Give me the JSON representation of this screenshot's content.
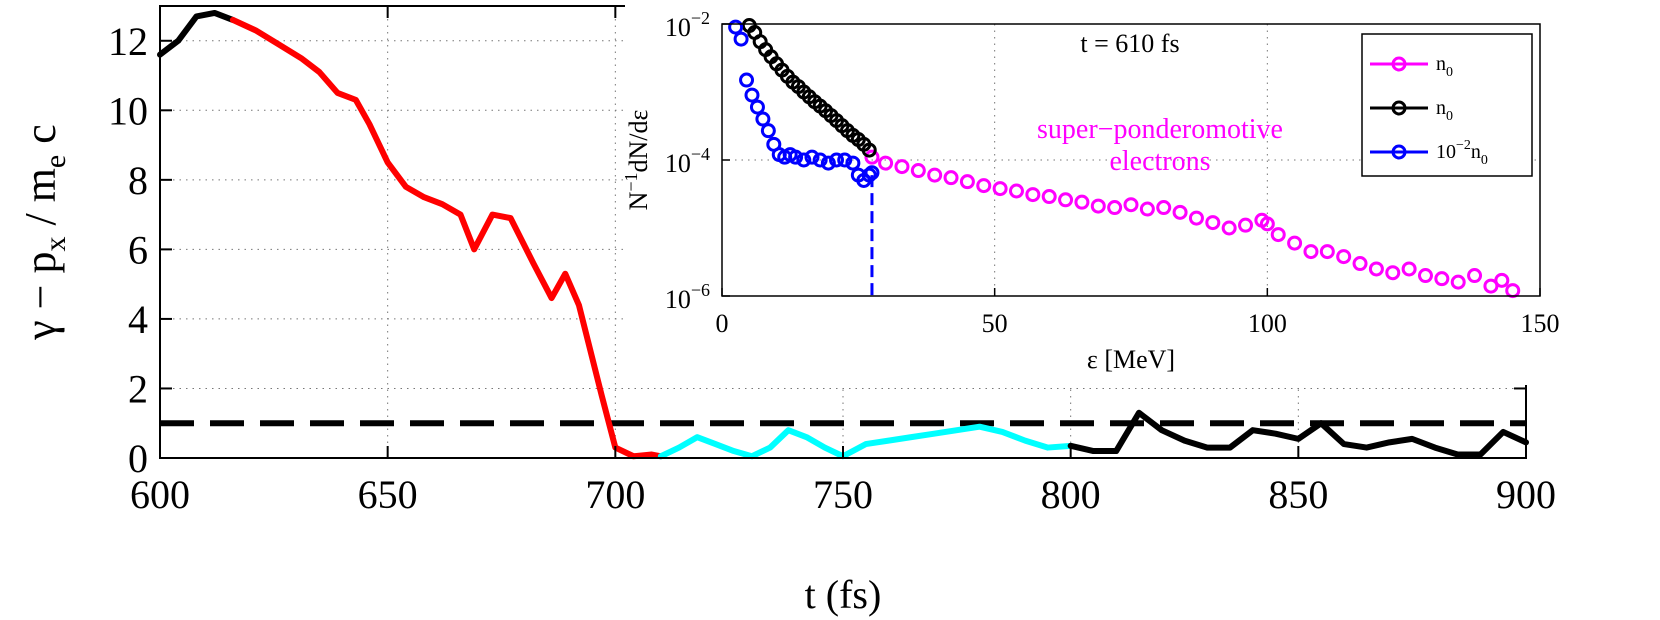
{
  "colors": {
    "black": "#000000",
    "red": "#ff0000",
    "cyan": "#00ffff",
    "magenta": "#ff00ff",
    "blue": "#0000ff",
    "grid": "#777777"
  },
  "chart_data": [
    {
      "id": "main",
      "type": "line",
      "title": "",
      "xlabel": "t (fs)",
      "ylabel": "γ − p / m c",
      "ylabel_sub_px": "x",
      "ylabel_sub_me": "e",
      "xlim": [
        600,
        900
      ],
      "ylim": [
        0,
        13
      ],
      "xticks": [
        600,
        650,
        700,
        750,
        800,
        850,
        900
      ],
      "yticks": [
        0,
        2,
        4,
        6,
        8,
        10,
        12
      ],
      "grid": true,
      "reference_line": {
        "y": 1,
        "style": "dashed",
        "color": "#000000"
      },
      "series": [
        {
          "color": "#000000",
          "x": [
            600,
            604,
            608,
            612,
            616
          ],
          "y": [
            11.6,
            12.0,
            12.7,
            12.8,
            12.6
          ]
        },
        {
          "color": "#ff0000",
          "x": [
            616,
            621,
            626,
            631,
            635,
            639,
            643,
            646,
            650,
            654,
            658,
            662,
            666,
            669,
            673,
            677,
            682,
            686,
            689,
            692,
            697,
            700,
            704,
            708,
            710
          ],
          "y": [
            12.6,
            12.3,
            11.9,
            11.5,
            11.1,
            10.5,
            10.3,
            9.6,
            8.5,
            7.8,
            7.5,
            7.3,
            7.0,
            6.0,
            7.0,
            6.9,
            5.6,
            4.6,
            5.3,
            4.4,
            1.8,
            0.3,
            0.05,
            0.1,
            0.05
          ]
        },
        {
          "color": "#00ffff",
          "x": [
            710,
            714,
            718,
            722,
            726,
            730,
            734,
            738,
            742,
            746,
            750,
            755,
            760,
            765,
            770,
            775,
            780,
            785,
            790,
            795,
            800
          ],
          "y": [
            0.05,
            0.3,
            0.6,
            0.4,
            0.2,
            0.05,
            0.3,
            0.8,
            0.6,
            0.3,
            0.05,
            0.4,
            0.5,
            0.6,
            0.7,
            0.8,
            0.9,
            0.75,
            0.5,
            0.3,
            0.35
          ]
        },
        {
          "color": "#000000",
          "x": [
            800,
            805,
            810,
            815,
            820,
            825,
            830,
            835,
            840,
            845,
            850,
            855,
            860,
            865,
            870,
            875,
            880,
            885,
            890,
            895,
            900
          ],
          "y": [
            0.35,
            0.2,
            0.2,
            1.3,
            0.8,
            0.5,
            0.3,
            0.3,
            0.8,
            0.7,
            0.55,
            1.0,
            0.4,
            0.3,
            0.45,
            0.55,
            0.3,
            0.1,
            0.1,
            0.75,
            0.45
          ]
        }
      ]
    },
    {
      "id": "inset",
      "type": "scatter",
      "title": "t = 610 fs",
      "xlabel": "ε [MeV]",
      "ylabel": "N  dN/dε",
      "ylabel_sup": "−1",
      "yscale": "log",
      "xlim": [
        0,
        150
      ],
      "ylim": [
        1e-06,
        0.01
      ],
      "xticks": [
        0,
        50,
        100,
        150
      ],
      "yticks": [
        1e-06,
        0.0001,
        0.01
      ],
      "ytick_labels": [
        {
          "base": "10",
          "exp": "−6"
        },
        {
          "base": "10",
          "exp": "−4"
        },
        {
          "base": "10",
          "exp": "−2"
        }
      ],
      "grid": true,
      "annotation": [
        "super−ponderomotive",
        "electrons"
      ],
      "legend_position": "top-right",
      "legend": [
        {
          "label": "n",
          "sub": "0",
          "sup": "",
          "color": "#ff00ff"
        },
        {
          "label": "n",
          "sub": "0",
          "sup": "",
          "color": "#000000"
        },
        {
          "label": "10  n",
          "sup": "−2",
          "sub": "0",
          "color": "#0000ff"
        }
      ],
      "cutoff_line": {
        "x": 27.5,
        "color": "#0000ff",
        "style": "dashed"
      },
      "series": [
        {
          "color": "#ff00ff",
          "marker": "circle",
          "x": [
            27.5,
            30,
            33,
            36,
            39,
            42,
            45,
            48,
            51,
            54,
            57,
            60,
            63,
            66,
            69,
            72,
            75,
            78,
            81,
            84,
            87,
            90,
            93,
            96,
            99,
            100,
            102,
            105,
            108,
            111,
            114,
            117,
            120,
            123,
            126,
            129,
            132,
            135,
            138,
            141,
            143,
            145
          ],
          "y": [
            0.00011,
            9e-05,
            8e-05,
            7e-05,
            6e-05,
            5.5e-05,
            4.8e-05,
            4.2e-05,
            3.8e-05,
            3.5e-05,
            3.1e-05,
            2.9e-05,
            2.6e-05,
            2.4e-05,
            2.1e-05,
            2e-05,
            2.2e-05,
            1.9e-05,
            2e-05,
            1.7e-05,
            1.4e-05,
            1.2e-05,
            1e-05,
            1.1e-05,
            1.3e-05,
            1.15e-05,
            8e-06,
            6e-06,
            4.5e-06,
            4.5e-06,
            3.8e-06,
            3e-06,
            2.5e-06,
            2.2e-06,
            2.5e-06,
            2e-06,
            1.8e-06,
            1.6e-06,
            2e-06,
            1.4e-06,
            1.7e-06,
            1.2e-06
          ]
        },
        {
          "color": "#000000",
          "marker": "circle",
          "x": [
            5,
            6,
            7,
            8,
            9,
            10,
            11,
            12,
            13,
            14,
            15,
            16,
            17,
            18,
            19,
            20,
            21,
            22,
            23,
            24,
            25,
            26,
            27
          ],
          "y": [
            0.0095,
            0.0075,
            0.0055,
            0.0042,
            0.0033,
            0.0026,
            0.0021,
            0.0017,
            0.0014,
            0.0012,
            0.001,
            0.00085,
            0.00072,
            0.00062,
            0.00053,
            0.00045,
            0.00038,
            0.00032,
            0.00027,
            0.00023,
            0.0002,
            0.00017,
            0.00014
          ]
        },
        {
          "color": "#0000ff",
          "marker": "circle",
          "x": [
            2.5,
            3.5,
            4.5,
            5.5,
            6.5,
            7.5,
            8.5,
            9.5,
            10.5,
            11.5,
            12.5,
            13.5,
            15,
            16.5,
            18,
            19.5,
            21,
            22.5,
            24,
            25,
            26,
            27,
            27.5
          ],
          "y": [
            0.009,
            0.006,
            0.0015,
            0.0009,
            0.0006,
            0.0004,
            0.00027,
            0.00017,
            0.00012,
            0.00011,
            0.00012,
            0.00011,
            0.0001,
            0.00011,
            0.0001,
            9e-05,
            0.0001,
            0.0001,
            9e-05,
            6e-05,
            5e-05,
            6e-05,
            6.5e-05
          ]
        }
      ]
    }
  ]
}
